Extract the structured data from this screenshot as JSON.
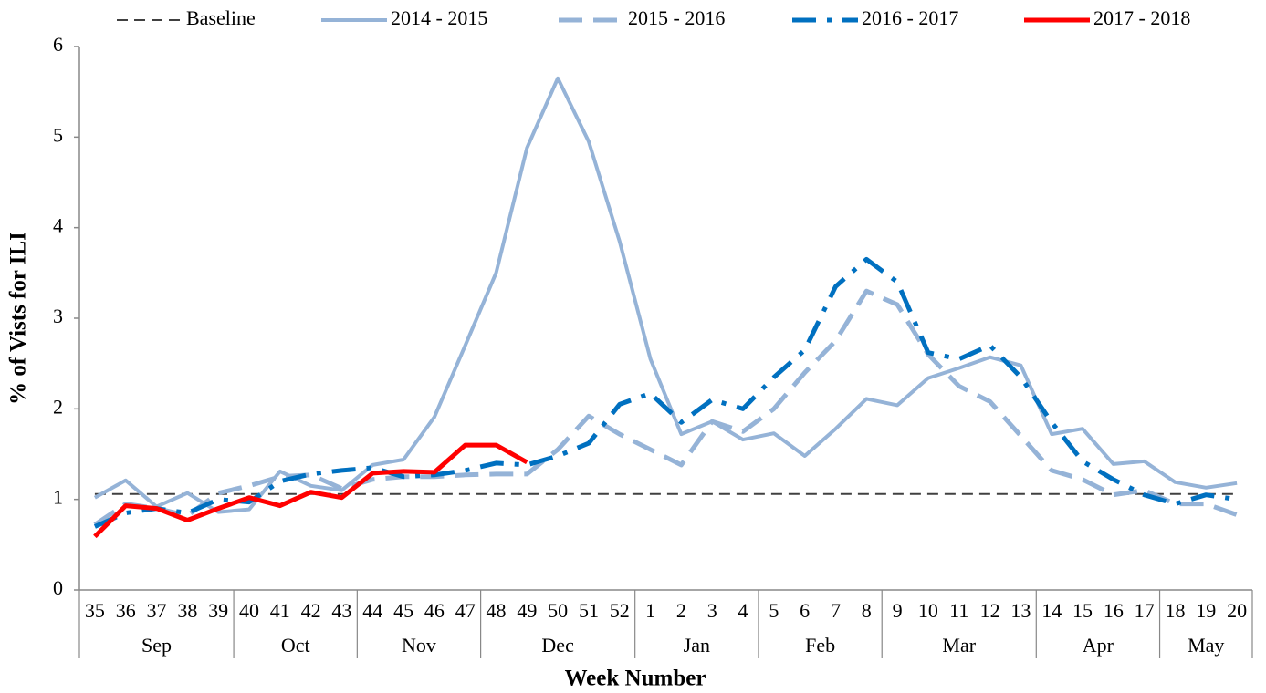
{
  "chart_data": {
    "type": "line",
    "ylabel": "% of Vists for ILI",
    "xlabel": "Week Number",
    "categories": [
      "35",
      "36",
      "37",
      "38",
      "39",
      "40",
      "41",
      "42",
      "43",
      "44",
      "45",
      "46",
      "47",
      "48",
      "49",
      "50",
      "51",
      "52",
      "1",
      "2",
      "3",
      "4",
      "5",
      "6",
      "7",
      "8",
      "9",
      "10",
      "11",
      "12",
      "13",
      "14",
      "15",
      "16",
      "17",
      "18",
      "19",
      "20"
    ],
    "months": [
      "Sep",
      null,
      null,
      null,
      null,
      "Oct",
      null,
      null,
      null,
      "Nov",
      null,
      null,
      null,
      "Dec",
      null,
      null,
      null,
      null,
      "Jan",
      null,
      null,
      null,
      "Feb",
      null,
      null,
      null,
      "Mar",
      null,
      null,
      null,
      null,
      "Apr",
      null,
      null,
      null,
      "May",
      null,
      null
    ],
    "ylim": [
      0,
      6
    ],
    "yticks": [
      0,
      1,
      2,
      3,
      4,
      5,
      6
    ],
    "legend": "top",
    "series": [
      {
        "name": "Baseline",
        "color": "#404040",
        "dash": "dash",
        "width": 2,
        "values": [
          1.06,
          1.06,
          1.06,
          1.06,
          1.06,
          1.06,
          1.06,
          1.06,
          1.06,
          1.06,
          1.06,
          1.06,
          1.06,
          1.06,
          1.06,
          1.06,
          1.06,
          1.06,
          1.06,
          1.06,
          1.06,
          1.06,
          1.06,
          1.06,
          1.06,
          1.06,
          1.06,
          1.06,
          1.06,
          1.06,
          1.06,
          1.06,
          1.06,
          1.06,
          1.06,
          1.06,
          1.06,
          1.06
        ]
      },
      {
        "name": "2014 - 2015",
        "color": "#95b3d7",
        "dash": "solid",
        "width": 4,
        "values": [
          1.02,
          1.21,
          0.92,
          1.07,
          0.86,
          0.89,
          1.31,
          1.15,
          1.1,
          1.38,
          1.44,
          1.91,
          2.7,
          3.5,
          4.88,
          5.65,
          4.95,
          3.85,
          2.55,
          1.72,
          1.86,
          1.66,
          1.73,
          1.48,
          1.78,
          2.11,
          2.04,
          2.34,
          2.45,
          2.57,
          2.48,
          1.72,
          1.78,
          1.39,
          1.42,
          1.19,
          1.13,
          1.18
        ]
      },
      {
        "name": "2015 - 2016",
        "color": "#95b3d7",
        "dash": "longdash",
        "width": 5,
        "values": [
          0.72,
          0.95,
          0.9,
          0.82,
          1.07,
          1.15,
          1.25,
          1.27,
          1.12,
          1.22,
          1.25,
          1.25,
          1.27,
          1.28,
          1.28,
          1.55,
          1.92,
          1.72,
          1.55,
          1.38,
          1.86,
          1.75,
          2.0,
          2.4,
          2.75,
          3.3,
          3.15,
          2.6,
          2.25,
          2.08,
          1.7,
          1.32,
          1.22,
          1.05,
          1.1,
          0.95,
          0.95,
          0.83
        ]
      },
      {
        "name": "2016 - 2017",
        "color": "#0070c0",
        "dash": "dashdot",
        "width": 5,
        "values": [
          0.7,
          0.85,
          0.9,
          0.85,
          1.0,
          0.97,
          1.2,
          1.28,
          1.32,
          1.35,
          1.25,
          1.27,
          1.32,
          1.4,
          1.38,
          1.48,
          1.62,
          2.05,
          2.17,
          1.85,
          2.1,
          2.0,
          2.35,
          2.65,
          3.35,
          3.65,
          3.4,
          2.62,
          2.55,
          2.7,
          2.35,
          1.85,
          1.42,
          1.22,
          1.05,
          0.95,
          1.05,
          1.0
        ]
      },
      {
        "name": "2017 - 2018",
        "color": "#ff0000",
        "dash": "solid",
        "width": 5,
        "values": [
          0.59,
          0.93,
          0.9,
          0.77,
          0.9,
          1.02,
          0.93,
          1.08,
          1.02,
          1.29,
          1.31,
          1.3,
          1.6,
          1.6,
          1.41,
          null,
          null,
          null,
          null,
          null,
          null,
          null,
          null,
          null,
          null,
          null,
          null,
          null,
          null,
          null,
          null,
          null,
          null,
          null,
          null,
          null,
          null,
          null
        ]
      }
    ]
  }
}
